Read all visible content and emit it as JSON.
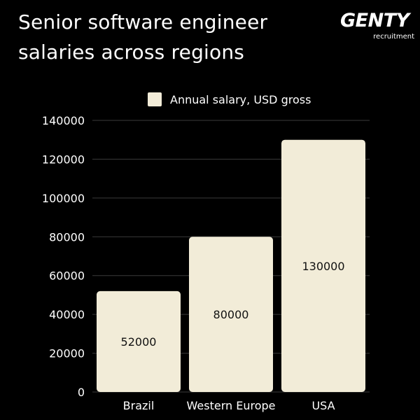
{
  "title": "Senior software engineer salaries across regions",
  "title_lines": [
    "Senior software engineer",
    "salaries across regions"
  ],
  "logo": {
    "word": "GENTY",
    "sub": "recruitment"
  },
  "colors": {
    "background": "#000000",
    "bar": "#f2ecd8",
    "text": "#ffffff",
    "bar_label": "#111111",
    "grid": "#3a3a3a"
  },
  "chart_data": {
    "type": "bar",
    "categories": [
      "Brazil",
      "Western Europe",
      "USA"
    ],
    "series": [
      {
        "name": "Annual salary, USD gross",
        "values": [
          52000,
          80000,
          130000
        ]
      }
    ],
    "data_labels": [
      "52000",
      "80000",
      "130000"
    ],
    "ylim": [
      0,
      140000
    ],
    "yticks": [
      0,
      20000,
      40000,
      60000,
      80000,
      100000,
      120000,
      140000
    ],
    "ytick_labels": [
      "0",
      "20000",
      "40000",
      "60000",
      "80000",
      "100000",
      "120000",
      "140000"
    ],
    "xlabel": "",
    "ylabel": "",
    "grid": true,
    "legend": "top-center"
  }
}
